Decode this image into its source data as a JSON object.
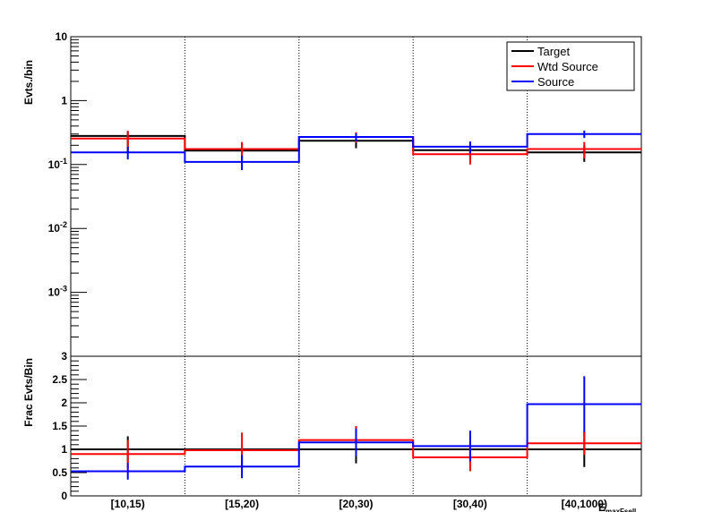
{
  "chart_data": [
    {
      "type": "line",
      "panel": "top",
      "ylabel": "Evts./bin",
      "yscale": "log",
      "ylim": [
        0.0001,
        10
      ],
      "y_ticks": [
        {
          "value": 10,
          "base": "10",
          "exp": ""
        },
        {
          "value": 1,
          "base": "1",
          "exp": ""
        },
        {
          "value": 0.1,
          "base": "10",
          "exp": "-1"
        },
        {
          "value": 0.01,
          "base": "10",
          "exp": "-2"
        },
        {
          "value": 0.001,
          "base": "10",
          "exp": "-3"
        }
      ],
      "categories": [
        "[10,15)",
        "[15,20)",
        "[20,30)",
        "[30,40)",
        "[40,1000)"
      ],
      "grid": "vertical dotted at bin edges",
      "legend": {
        "placement": "top-right",
        "entries": [
          "Target",
          "Wtd Source",
          "Source"
        ]
      },
      "series": [
        {
          "name": "Target",
          "color": "#000000",
          "values": [
            0.28,
            0.165,
            0.235,
            0.168,
            0.155
          ],
          "err_lo": [
            0.12,
            0.05,
            0.055,
            0.045,
            0.045
          ],
          "err_hi": [
            0.055,
            0.05,
            0.055,
            0.045,
            0.045
          ]
        },
        {
          "name": "Wtd Source",
          "color": "#ff0000",
          "values": [
            0.255,
            0.175,
            0.27,
            0.145,
            0.175
          ],
          "err_lo": [
            0.08,
            0.05,
            0.05,
            0.045,
            0.05
          ],
          "err_hi": [
            0.08,
            0.05,
            0.05,
            0.045,
            0.05
          ]
        },
        {
          "name": "Source",
          "color": "#0000ff",
          "values": [
            0.155,
            0.11,
            0.27,
            0.19,
            0.3
          ],
          "err_lo": [
            0.035,
            0.028,
            0.04,
            0.04,
            0.04
          ],
          "err_hi": [
            0.035,
            0.028,
            0.04,
            0.04,
            0.04
          ]
        }
      ]
    },
    {
      "type": "line",
      "panel": "bottom",
      "ylabel": "Frac Evts/Bin",
      "ylim": [
        0,
        3
      ],
      "y_ticks": [
        "0",
        "0.5",
        "1",
        "1.5",
        "2",
        "2.5",
        "3"
      ],
      "xlabel": "E_maxFsell",
      "xlabel_main": "E",
      "xlabel_sub": "maxFsell",
      "categories": [
        "[10,15)",
        "[15,20)",
        "[20,30)",
        "[30,40)",
        "[40,1000)"
      ],
      "series": [
        {
          "name": "Target",
          "color": "#000000",
          "values": [
            1.0,
            1.0,
            1.0,
            1.0,
            1.0
          ],
          "err_lo": [
            0.28,
            0,
            0.3,
            0,
            0.38
          ],
          "err_hi": [
            0.28,
            0,
            0.3,
            0,
            0.38
          ]
        },
        {
          "name": "Wtd Source",
          "color": "#ff0000",
          "values": [
            0.9,
            0.98,
            1.2,
            0.83,
            1.13
          ],
          "err_lo": [
            0.3,
            0.38,
            0.3,
            0.3,
            0.25
          ],
          "err_hi": [
            0.3,
            0.38,
            0.3,
            0.3,
            0.25
          ]
        },
        {
          "name": "Source",
          "color": "#0000ff",
          "values": [
            0.53,
            0.63,
            1.15,
            1.07,
            1.97
          ],
          "err_lo": [
            0.18,
            0.25,
            0.3,
            0.33,
            0.6
          ],
          "err_hi": [
            0.18,
            0.25,
            0.3,
            0.33,
            0.6
          ]
        }
      ]
    }
  ]
}
